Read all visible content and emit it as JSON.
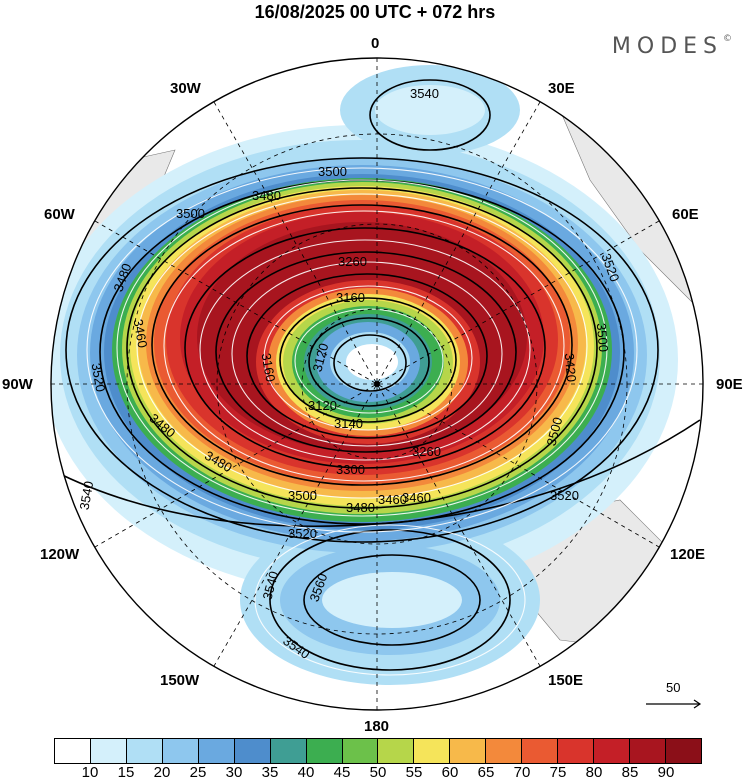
{
  "title": "16/08/2025  00 UTC  + 072 hrs",
  "brand": "MODES",
  "brand_mark": "©",
  "longitude_labels": {
    "lon_0": "0",
    "lon_30e": "30E",
    "lon_60e": "60E",
    "lon_90e": "90E",
    "lon_120e": "120E",
    "lon_150e": "150E",
    "lon_180": "180",
    "lon_150w": "150W",
    "lon_120w": "120W",
    "lon_90w": "90W",
    "lon_60w": "60W",
    "lon_30w": "30W"
  },
  "contour_labels": [
    "3540",
    "3500",
    "3480",
    "3500",
    "3480",
    "3460",
    "3520",
    "3500",
    "3260",
    "3160",
    "3120",
    "3160",
    "3140",
    "3120",
    "3300",
    "3260",
    "3480",
    "3500",
    "3460",
    "3480",
    "3420",
    "3520",
    "3520",
    "3540",
    "3560",
    "3540",
    "3540",
    "3520",
    "3500",
    "3460",
    "3480"
  ],
  "reference_vector": {
    "label": "50"
  },
  "colorbar": {
    "colors": [
      "#ffffff",
      "#d4f0fb",
      "#b0dff5",
      "#8ec7ee",
      "#6aa9e0",
      "#4e8dcc",
      "#3f9e94",
      "#3cae50",
      "#6cc14a",
      "#b6d64a",
      "#f5e45a",
      "#f7b94a",
      "#f3893b",
      "#ea5a32",
      "#d9342c",
      "#c41f27",
      "#a8151f",
      "#8b0f18"
    ],
    "tick_labels": [
      "10",
      "15",
      "20",
      "25",
      "30",
      "35",
      "40",
      "45",
      "50",
      "55",
      "60",
      "65",
      "70",
      "75",
      "80",
      "85",
      "90"
    ]
  }
}
